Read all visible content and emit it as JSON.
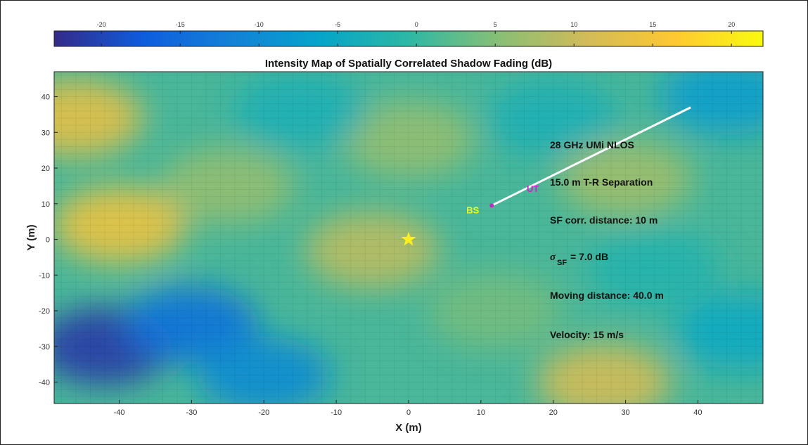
{
  "chart_data": {
    "type": "heatmap",
    "title": "Intensity Map of Spatially Correlated Shadow Fading (dB)",
    "xlabel": "X (m)",
    "ylabel": "Y (m)",
    "xlim": [
      -49,
      49
    ],
    "ylim": [
      -46,
      47
    ],
    "xticks": [
      -40,
      -30,
      -20,
      -10,
      0,
      10,
      20,
      30,
      40
    ],
    "yticks": [
      40,
      30,
      20,
      10,
      0,
      -10,
      -20,
      -30,
      -40
    ],
    "colorbar": {
      "range": [
        -23,
        22
      ],
      "ticks": [
        -20,
        -15,
        -10,
        -5,
        0,
        5,
        10,
        15,
        20
      ],
      "colormap": "parula",
      "position": "top"
    },
    "grid": true,
    "field_blobs": [
      {
        "x": -46,
        "y": 34,
        "value": 13
      },
      {
        "x": -40,
        "y": 4,
        "value": 14
      },
      {
        "x": -42,
        "y": -30,
        "value": -21
      },
      {
        "x": -30,
        "y": -24,
        "value": -14
      },
      {
        "x": -20,
        "y": -38,
        "value": -10
      },
      {
        "x": -5,
        "y": -3,
        "value": 9
      },
      {
        "x": 0,
        "y": 28,
        "value": 6
      },
      {
        "x": -15,
        "y": 36,
        "value": -3
      },
      {
        "x": 20,
        "y": 34,
        "value": -3
      },
      {
        "x": 30,
        "y": 17,
        "value": 7
      },
      {
        "x": 27,
        "y": -40,
        "value": 11
      },
      {
        "x": 44,
        "y": 40,
        "value": -7
      },
      {
        "x": 46,
        "y": -26,
        "value": -5
      },
      {
        "x": 34,
        "y": -8,
        "value": -2
      },
      {
        "x": 12,
        "y": -20,
        "value": 4
      },
      {
        "x": -25,
        "y": 15,
        "value": 6
      }
    ],
    "markers": {
      "origin_star": {
        "x": 0,
        "y": 0,
        "color": "#ffee22"
      },
      "bs": {
        "x": 11.5,
        "y": 9.5,
        "label": "BS",
        "color": "#eeff22"
      },
      "ut": {
        "label": "UT",
        "color": "#cc22cc"
      },
      "track": {
        "x": [
          11.5,
          39
        ],
        "y": [
          9.5,
          37
        ],
        "color": "#ffffff"
      }
    },
    "annotations": [
      "28 GHz UMi NLOS",
      "15.0 m T-R Separation",
      "SF corr. distance: 10 m",
      "= 7.0 dB",
      "Moving distance: 40.0 m",
      "Velocity: 15 m/s"
    ],
    "sigma_symbol": "σ",
    "sigma_sub": "SF"
  }
}
